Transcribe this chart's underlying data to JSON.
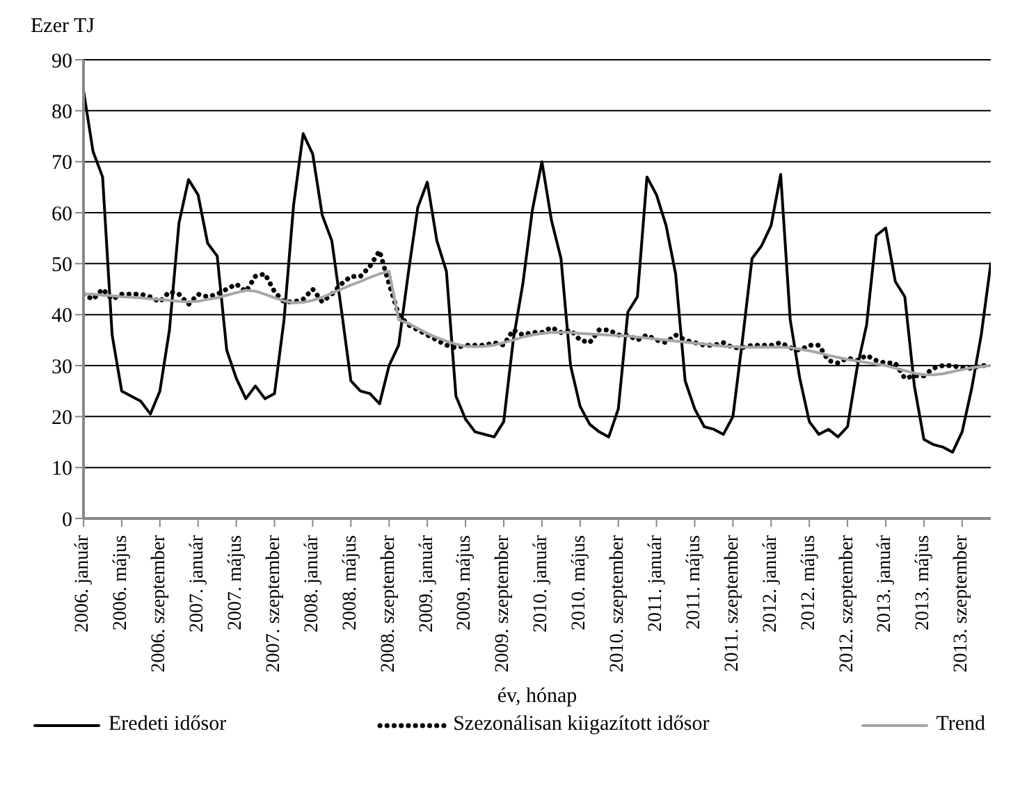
{
  "chart_data": {
    "type": "line",
    "xlabel": "év, hónap",
    "ylabel": "Ezer TJ",
    "categories": [
      "2006. január",
      null,
      null,
      null,
      "2006. május",
      null,
      null,
      null,
      "2006. szeptember",
      null,
      null,
      null,
      "2007. január",
      null,
      null,
      null,
      "2007. május",
      null,
      null,
      null,
      "2007. szeptember",
      null,
      null,
      null,
      "2008. január",
      null,
      null,
      null,
      "2008. május",
      null,
      null,
      null,
      "2008. szeptember",
      null,
      null,
      null,
      "2009. január",
      null,
      null,
      null,
      "2009. május",
      null,
      null,
      null,
      "2009. szeptember",
      null,
      null,
      null,
      "2010. január",
      null,
      null,
      null,
      "2010. május",
      null,
      null,
      null,
      "2010. szeptember",
      null,
      null,
      null,
      "2011. január",
      null,
      null,
      null,
      "2011. május",
      null,
      null,
      null,
      "2011. szeptember",
      null,
      null,
      null,
      "2012. január",
      null,
      null,
      null,
      "2012. május",
      null,
      null,
      null,
      "2012. szeptember",
      null,
      null,
      null,
      "2013. január",
      null,
      null,
      null,
      "2013. május",
      null,
      null,
      null,
      "2013. szeptember",
      null,
      null,
      null
    ],
    "series": [
      {
        "name": "Eredeti idősor",
        "color": "#000000",
        "line_style": "solid",
        "values": [
          84,
          72,
          67,
          36,
          25,
          24,
          23,
          20.5,
          25,
          37,
          58,
          66.5,
          63.5,
          54,
          51.5,
          33,
          27.5,
          23.5,
          26,
          23.5,
          24.5,
          39,
          61.5,
          75.5,
          71.5,
          59.5,
          54.5,
          41,
          27,
          25,
          24.5,
          22.5,
          30,
          34,
          48,
          61,
          66,
          54.5,
          48.5,
          24,
          19.5,
          17,
          16.5,
          16,
          19,
          35,
          46,
          60.5,
          70,
          58.5,
          51,
          30,
          22,
          18.5,
          17,
          16,
          21.5,
          40.5,
          43.5,
          67,
          63.5,
          57.5,
          48,
          27,
          21.5,
          18,
          17.5,
          16.5,
          20,
          35,
          51,
          53.5,
          57.5,
          67.5,
          39,
          27.5,
          19,
          16.5,
          17.5,
          16,
          18,
          29.5,
          38,
          55.5,
          57,
          46.5,
          43.5,
          26,
          15.5,
          14.5,
          14,
          13,
          17,
          25.5,
          36,
          50
        ]
      },
      {
        "name": "Szezonálisan kiigazított idősor",
        "color": "#000000",
        "line_style": "dotted",
        "values": [
          44,
          43,
          45,
          43,
          44,
          44,
          44,
          43.5,
          42.5,
          44.5,
          44,
          42,
          44,
          43.5,
          44,
          45,
          46,
          44.5,
          47.5,
          48,
          44.5,
          42.5,
          42.5,
          43,
          45,
          42.5,
          44,
          46,
          47.5,
          47.5,
          49.5,
          52.5,
          46,
          40,
          38,
          37,
          36,
          35,
          34,
          33.5,
          34,
          34,
          34,
          34.5,
          34,
          37,
          36,
          36.5,
          36.5,
          37.5,
          36.5,
          37,
          35,
          34.5,
          37,
          37,
          36,
          36,
          35,
          36,
          35,
          34.5,
          36,
          35,
          34.5,
          34,
          34,
          34.5,
          33.5,
          33.5,
          34,
          34,
          34,
          34.5,
          33.5,
          33,
          34,
          34,
          31,
          30.5,
          31.5,
          31,
          32,
          31,
          30.5,
          30.5,
          27.5,
          28,
          28,
          29.5,
          30,
          30,
          29.5,
          29.5,
          30,
          30
        ]
      },
      {
        "name": "Trend",
        "color": "#a6a6a6",
        "line_style": "solid",
        "values": [
          44,
          44,
          43.8,
          43.7,
          43.5,
          43.4,
          43.3,
          43.1,
          43,
          42.8,
          42.6,
          42.5,
          42.6,
          43,
          43.3,
          43.8,
          44.3,
          44.8,
          44.6,
          44,
          43.3,
          42.7,
          42.3,
          42.4,
          42.8,
          43.4,
          44.2,
          45,
          45.8,
          46.5,
          47.3,
          48,
          48.5,
          39,
          38.3,
          37.3,
          36.3,
          35.5,
          34.8,
          34.2,
          33.8,
          33.7,
          33.8,
          34,
          34.5,
          35,
          35.6,
          36,
          36.3,
          36.5,
          36.5,
          36.5,
          36.3,
          36.2,
          36.1,
          36,
          35.9,
          35.8,
          35.6,
          35.4,
          35.2,
          35,
          34.8,
          34.6,
          34.4,
          34.2,
          34,
          33.8,
          33.7,
          33.6,
          33.6,
          33.6,
          33.6,
          33.6,
          33.5,
          33.2,
          32.9,
          32.5,
          32,
          31.6,
          31.2,
          30.9,
          30.6,
          30.3,
          30,
          29.5,
          29,
          28.5,
          28.2,
          28.2,
          28.4,
          28.8,
          29.2,
          29.6,
          29.8,
          30
        ]
      }
    ],
    "ylim": [
      0,
      90
    ],
    "yticks": [
      0,
      10,
      20,
      30,
      40,
      50,
      60,
      70,
      80,
      90
    ],
    "grid": "y",
    "legend": "bottom",
    "marker": "none"
  }
}
